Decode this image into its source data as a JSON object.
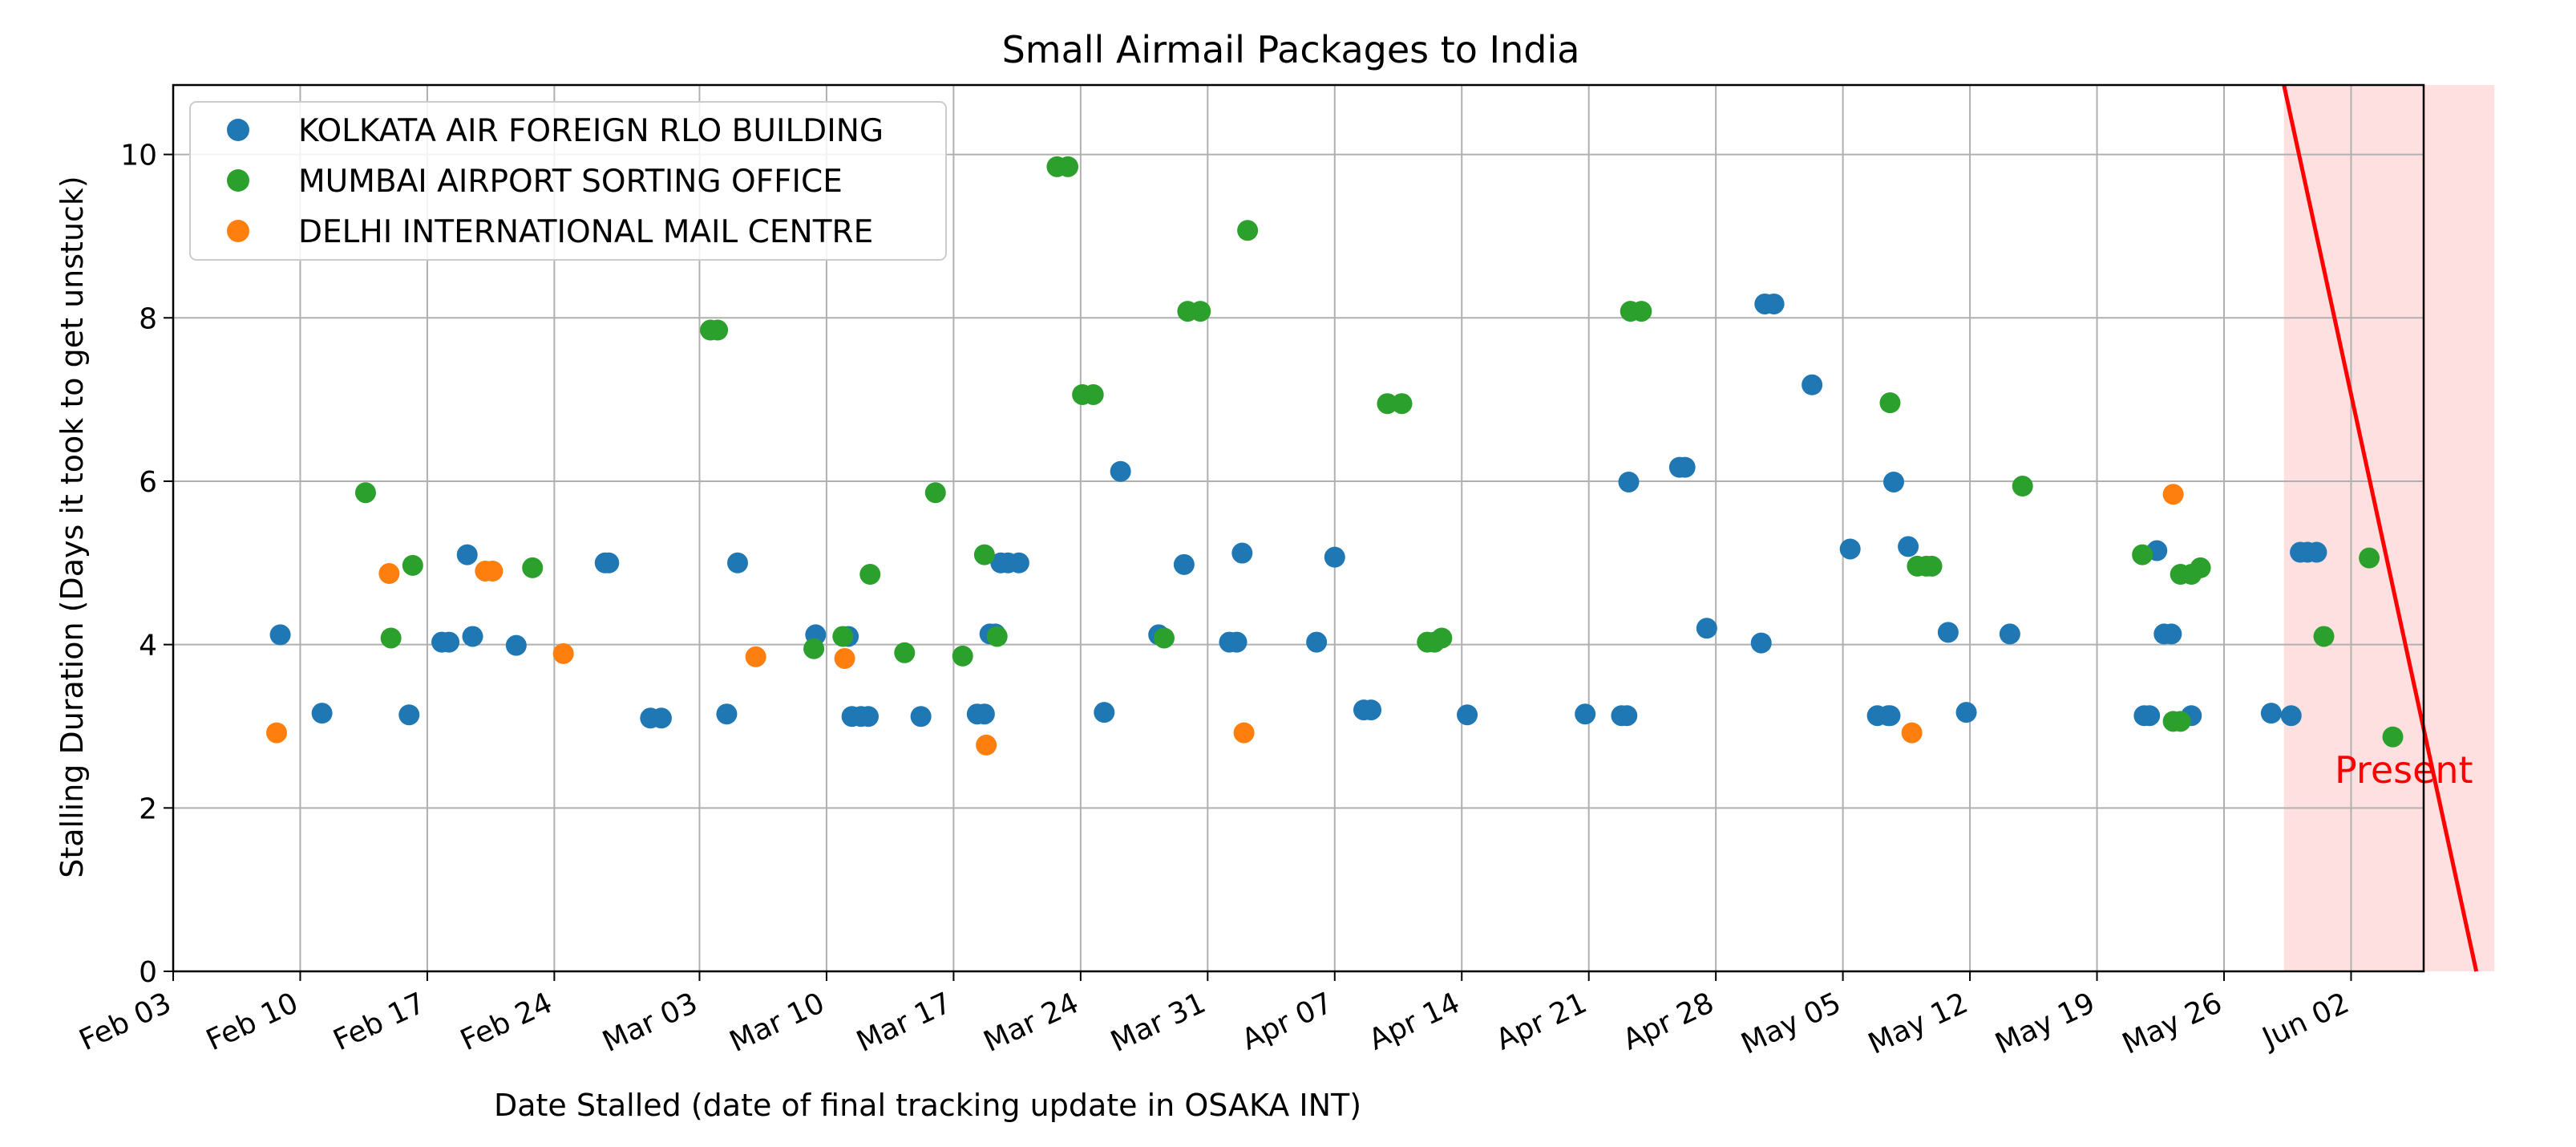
{
  "chart_data": {
    "type": "scatter",
    "title": "Small Airmail Packages to India",
    "xlabel": "Date Stalled (date of final tracking update in OSAKA INT)",
    "ylabel": "Stalling Duration (Days it took to get unstuck)",
    "x_is_date": true,
    "xlim": [
      "2024-02-03",
      "2024-06-06"
    ],
    "ylim": [
      0,
      10.85
    ],
    "x_ticks": [
      "Feb 03",
      "Feb 10",
      "Feb 17",
      "Feb 24",
      "Mar 03",
      "Mar 10",
      "Mar 17",
      "Mar 24",
      "Mar 31",
      "Apr 07",
      "Apr 14",
      "Apr 21",
      "Apr 28",
      "May 05",
      "May 12",
      "May 19",
      "May 26",
      "Jun 02"
    ],
    "x_tick_dates": [
      "2024-02-03",
      "2024-02-10",
      "2024-02-17",
      "2024-02-24",
      "2024-03-03",
      "2024-03-10",
      "2024-03-17",
      "2024-03-24",
      "2024-03-31",
      "2024-04-07",
      "2024-04-14",
      "2024-04-21",
      "2024-04-28",
      "2024-05-05",
      "2024-05-12",
      "2024-05-19",
      "2024-05-26",
      "2024-06-02"
    ],
    "y_ticks": [
      0,
      2,
      4,
      6,
      8,
      10
    ],
    "grid": true,
    "legend_position": "top-left",
    "series": [
      {
        "name": "KOLKATA AIR FOREIGN RLO BUILDING",
        "color": "#1f77b4",
        "points": [
          [
            "2024-02-08.9",
            4.12
          ],
          [
            "2024-02-11.2",
            3.16
          ],
          [
            "2024-02-16.0",
            3.14
          ],
          [
            "2024-02-17.8",
            4.03
          ],
          [
            "2024-02-18.2",
            4.03
          ],
          [
            "2024-02-19.2",
            5.1
          ],
          [
            "2024-02-19.5",
            4.1
          ],
          [
            "2024-02-21.9",
            3.99
          ],
          [
            "2024-02-26.8",
            5.0
          ],
          [
            "2024-02-27.0",
            5.0
          ],
          [
            "2024-02-29.3",
            3.1
          ],
          [
            "2024-02-29.9",
            3.1
          ],
          [
            "2024-03-04.5",
            3.15
          ],
          [
            "2024-03-05.1",
            5.0
          ],
          [
            "2024-03-09.4",
            4.12
          ],
          [
            "2024-03-11.2",
            4.1
          ],
          [
            "2024-03-11.4",
            3.12
          ],
          [
            "2024-03-11.9",
            3.12
          ],
          [
            "2024-03-12.3",
            3.12
          ],
          [
            "2024-03-15.2",
            3.12
          ],
          [
            "2024-03-18.3",
            3.15
          ],
          [
            "2024-03-18.7",
            3.15
          ],
          [
            "2024-03-19.0",
            4.13
          ],
          [
            "2024-03-19.3",
            4.13
          ],
          [
            "2024-03-19.6",
            5.0
          ],
          [
            "2024-03-20.0",
            5.0
          ],
          [
            "2024-03-20.6",
            5.0
          ],
          [
            "2024-03-25.3",
            3.17
          ],
          [
            "2024-03-26.2",
            6.12
          ],
          [
            "2024-03-28.3",
            4.12
          ],
          [
            "2024-03-29.7",
            4.98
          ],
          [
            "2024-04-01.2",
            4.03
          ],
          [
            "2024-04-01.6",
            4.03
          ],
          [
            "2024-04-01.9",
            5.12
          ],
          [
            "2024-04-06.0",
            4.03
          ],
          [
            "2024-04-07.0",
            5.07
          ],
          [
            "2024-04-08.6",
            3.2
          ],
          [
            "2024-04-09.0",
            3.2
          ],
          [
            "2024-04-14.3",
            3.14
          ],
          [
            "2024-04-20.8",
            3.15
          ],
          [
            "2024-04-22.8",
            3.13
          ],
          [
            "2024-04-23.1",
            3.13
          ],
          [
            "2024-04-23.2",
            5.99
          ],
          [
            "2024-04-26.0",
            6.17
          ],
          [
            "2024-04-26.3",
            6.17
          ],
          [
            "2024-04-27.5",
            4.2
          ],
          [
            "2024-04-30.5",
            4.02
          ],
          [
            "2024-04-30.7",
            8.17
          ],
          [
            "2024-05-01.2",
            8.17
          ],
          [
            "2024-05-03.3",
            7.18
          ],
          [
            "2024-05-05.4",
            5.17
          ],
          [
            "2024-05-06.9",
            3.13
          ],
          [
            "2024-05-07.5",
            3.13
          ],
          [
            "2024-05-07.6",
            3.13
          ],
          [
            "2024-05-07.8",
            5.99
          ],
          [
            "2024-05-08.6",
            5.2
          ],
          [
            "2024-05-10.8",
            4.15
          ],
          [
            "2024-05-11.8",
            3.17
          ],
          [
            "2024-05-14.2",
            4.13
          ],
          [
            "2024-05-21.6",
            3.13
          ],
          [
            "2024-05-21.9",
            3.13
          ],
          [
            "2024-05-22.3",
            5.15
          ],
          [
            "2024-05-22.7",
            4.13
          ],
          [
            "2024-05-23.1",
            4.13
          ],
          [
            "2024-05-24.2",
            3.13
          ],
          [
            "2024-05-28.6",
            3.16
          ],
          [
            "2024-05-29.7",
            3.13
          ],
          [
            "2024-05-30.2",
            5.13
          ],
          [
            "2024-05-30.6",
            5.13
          ],
          [
            "2024-05-31.1",
            5.13
          ]
        ]
      },
      {
        "name": "MUMBAI AIRPORT SORTING OFFICE",
        "color": "#2ca02c",
        "points": [
          [
            "2024-02-13.6",
            5.86
          ],
          [
            "2024-02-15.0",
            4.08
          ],
          [
            "2024-02-16.2",
            4.97
          ],
          [
            "2024-02-22.8",
            4.94
          ],
          [
            "2024-03-03.6",
            7.85
          ],
          [
            "2024-03-04.0",
            7.85
          ],
          [
            "2024-03-09.3",
            3.95
          ],
          [
            "2024-03-10.9",
            4.1
          ],
          [
            "2024-03-12.4",
            4.86
          ],
          [
            "2024-03-14.3",
            3.9
          ],
          [
            "2024-03-16.0",
            5.86
          ],
          [
            "2024-03-17.5",
            3.86
          ],
          [
            "2024-03-18.7",
            5.1
          ],
          [
            "2024-03-19.4",
            4.1
          ],
          [
            "2024-03-22.7",
            9.85
          ],
          [
            "2024-03-23.3",
            9.85
          ],
          [
            "2024-03-24.1",
            7.06
          ],
          [
            "2024-03-24.7",
            7.06
          ],
          [
            "2024-03-28.6",
            4.08
          ],
          [
            "2024-03-29.9",
            8.08
          ],
          [
            "2024-03-30.6",
            8.08
          ],
          [
            "2024-04-02.2",
            9.07
          ],
          [
            "2024-04-09.9",
            6.95
          ],
          [
            "2024-04-10.7",
            6.95
          ],
          [
            "2024-04-12.1",
            4.03
          ],
          [
            "2024-04-12.5",
            4.03
          ],
          [
            "2024-04-12.9",
            4.08
          ],
          [
            "2024-04-23.3",
            8.08
          ],
          [
            "2024-04-23.9",
            8.08
          ],
          [
            "2024-05-07.6",
            6.96
          ],
          [
            "2024-05-09.1",
            4.96
          ],
          [
            "2024-05-09.6",
            4.96
          ],
          [
            "2024-05-09.9",
            4.96
          ],
          [
            "2024-05-14.9",
            5.94
          ],
          [
            "2024-05-21.5",
            5.1
          ],
          [
            "2024-05-23.2",
            3.06
          ],
          [
            "2024-05-23.6",
            3.06
          ],
          [
            "2024-05-23.6",
            4.86
          ],
          [
            "2024-05-24.2",
            4.86
          ],
          [
            "2024-05-24.7",
            4.94
          ],
          [
            "2024-05-31.5",
            4.1
          ],
          [
            "2024-06-03.0",
            5.06
          ],
          [
            "2024-06-04.3",
            2.87
          ]
        ]
      },
      {
        "name": "DELHI INTERNATIONAL MAIL CENTRE",
        "color": "#ff7f0e",
        "points": [
          [
            "2024-02-08.7",
            2.92
          ],
          [
            "2024-02-14.9",
            4.87
          ],
          [
            "2024-02-20.2",
            4.9
          ],
          [
            "2024-02-20.6",
            4.9
          ],
          [
            "2024-02-24.5",
            3.89
          ],
          [
            "2024-03-06.1",
            3.85
          ],
          [
            "2024-03-11.0",
            3.83
          ],
          [
            "2024-03-18.8",
            2.77
          ],
          [
            "2024-04-02.0",
            2.92
          ],
          [
            "2024-05-08.8",
            2.92
          ],
          [
            "2024-05-23.2",
            5.84
          ]
        ]
      }
    ],
    "annotation": {
      "text": "Present",
      "color": "#ff0000",
      "line_start": [
        "2024-05-29.3",
        10.85
      ],
      "line_end": [
        "2024-06-08.9",
        0
      ],
      "shade_from": "2024-05-29.3",
      "shade_to": "2024-06-09.9",
      "shade_color": "#ffcccc"
    }
  }
}
